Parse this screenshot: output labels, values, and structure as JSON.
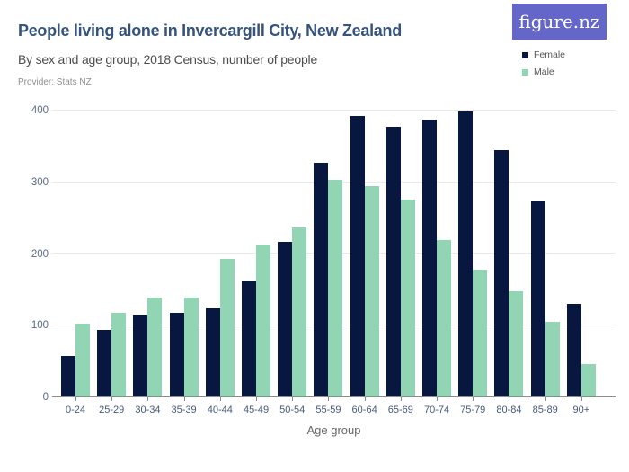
{
  "header": {
    "title": "People living alone in Invercargill City, New Zealand",
    "subtitle": "By sex and age group, 2018 Census, number of people",
    "provider": "Provider: Stats NZ",
    "logo_text": "figure.nz"
  },
  "colors": {
    "female_bar": "#071740",
    "male_bar": "#92d5b4",
    "logo_background": "#6467c9",
    "title_text": "#35537c",
    "gridline": "#e9e9e9",
    "axis_line": "#8c8c8c"
  },
  "chart_data": {
    "type": "bar",
    "title": "People living alone in Invercargill City, New Zealand",
    "subtitle": "By sex and age group, 2018 Census, number of people",
    "categories": [
      "0-24",
      "25-29",
      "30-34",
      "35-39",
      "40-44",
      "45-49",
      "50-54",
      "55-59",
      "60-64",
      "65-69",
      "70-74",
      "75-79",
      "80-84",
      "85-89",
      "90+"
    ],
    "series": [
      {
        "name": "Female",
        "color": "#071740",
        "values": [
          57,
          93,
          114,
          117,
          123,
          162,
          216,
          327,
          393,
          378,
          387,
          399,
          345,
          273,
          129
        ]
      },
      {
        "name": "Male",
        "color": "#92d5b4",
        "values": [
          102,
          117,
          138,
          138,
          192,
          213,
          237,
          303,
          294,
          276,
          219,
          177,
          147,
          105,
          45
        ]
      }
    ],
    "xlabel": "Age group",
    "ylabel": "",
    "ylim": [
      0,
      400
    ],
    "yticks": [
      0,
      100,
      200,
      300,
      400
    ],
    "grid": true,
    "legend_position": "top-right"
  }
}
